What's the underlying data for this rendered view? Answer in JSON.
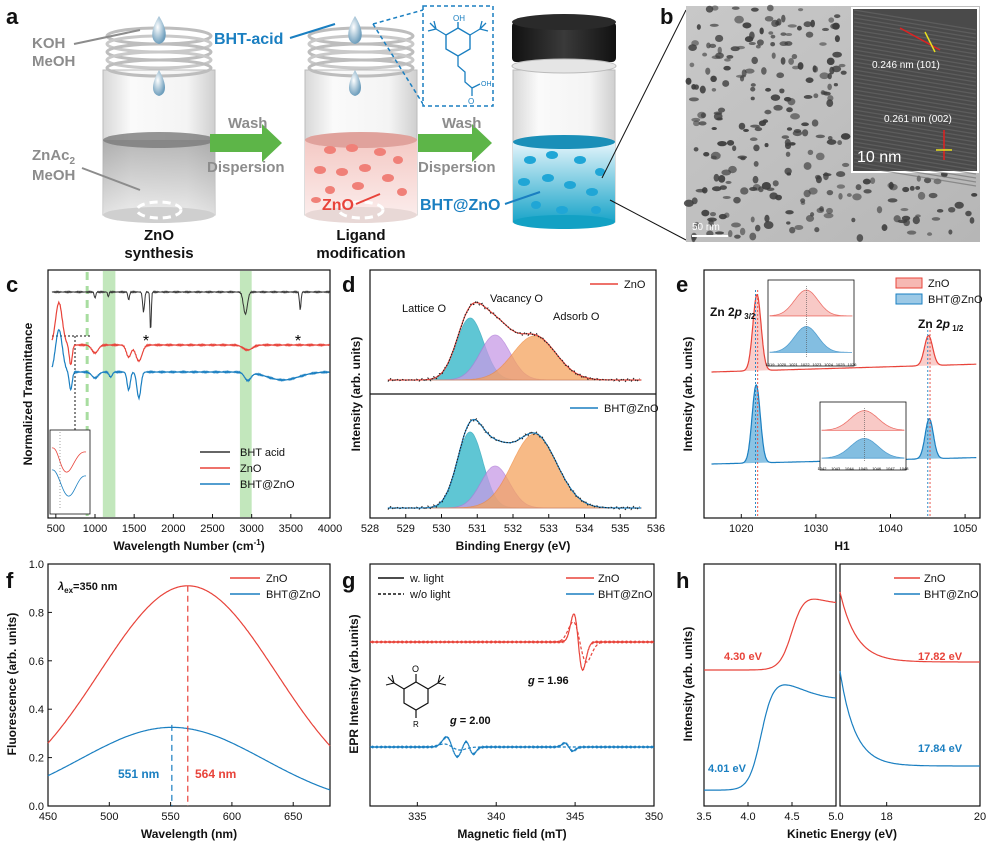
{
  "panel_letters": {
    "a": "a",
    "b": "b",
    "c": "c",
    "d": "d",
    "e": "e",
    "f": "f",
    "g": "g",
    "h": "h"
  },
  "schematic": {
    "koh": "KOH",
    "meoh1": "MeOH",
    "znac": "ZnAc",
    "znac_sub": "2",
    "meoh2": "MeOH",
    "bht_acid": "BHT-acid",
    "molecule_oh": "OH",
    "molecule_o": "O",
    "molecule_oh2": "OH",
    "wash1": "Wash",
    "dispersion1": "Dispersion",
    "wash2": "Wash",
    "dispersion2": "Dispersion",
    "zno": "ZnO",
    "bht_zno": "BHT@ZnO",
    "step1_l1": "ZnO",
    "step1_l2": "synthesis",
    "step2_l1": "Ligand",
    "step2_l2": "modification",
    "colors": {
      "zno": "#e8433a",
      "bht": "#1a7fc1",
      "arrow": "#5db548",
      "grey": "#8c8c8c"
    }
  },
  "tem": {
    "d1": "0.246 nm (101)",
    "d2": "0.261 nm (002)",
    "scale_inset": "10 nm",
    "scale_main": "50 nm"
  },
  "chart_data": [
    {
      "panel": "c",
      "type": "line",
      "xlabel": "Wavelength Number (cm",
      "xlabel_sup": "-1",
      "xlabel_close": ")",
      "ylabel": "Normalized Tranmittance",
      "xlim": [
        400,
        4000
      ],
      "xticks": [
        "500",
        "1000",
        "1500",
        "2000",
        "2500",
        "3000",
        "3500",
        "4000"
      ],
      "highlight_bands_cm1": [
        [
          1100,
          1260
        ],
        [
          2850,
          3000
        ]
      ],
      "dashed_line_cm1": 900,
      "star_marks": [
        "*",
        "*"
      ],
      "series": [
        {
          "name": "BHT acid",
          "color": "#333333"
        },
        {
          "name": "ZnO",
          "color": "#e8433a"
        },
        {
          "name": "BHT@ZnO",
          "color": "#1a7fc1"
        }
      ]
    },
    {
      "panel": "d",
      "type": "line",
      "xlabel": "Binding Energy (eV)",
      "ylabel": "Intensity (arb. units)",
      "xlim": [
        528,
        536
      ],
      "xticks": [
        "528",
        "529",
        "530",
        "531",
        "532",
        "533",
        "534",
        "535",
        "536"
      ],
      "peak_labels": [
        "Lattice O",
        "Vacancy O",
        "Adsorb O"
      ],
      "peak_centers_eV": [
        530.8,
        531.5,
        532.6
      ],
      "series": [
        {
          "name": "ZnO",
          "color": "#e8433a"
        },
        {
          "name": "BHT@ZnO",
          "color": "#1a7fc1"
        }
      ]
    },
    {
      "panel": "e",
      "type": "line",
      "xlabel": "H1",
      "ylabel": "Intensity (arb. units)",
      "xlim": [
        1015,
        1052
      ],
      "xticks": [
        "1020",
        "1030",
        "1040",
        "1050"
      ],
      "peak_labels": {
        "p32_main": "Zn 2",
        "p32_ital": "p",
        "p32_sub": " 3/2",
        "p12_main": "Zn 2",
        "p12_ital": "p",
        "p12_sub": " 1/2"
      },
      "peak_positions_eV": [
        1022.1,
        1045.1
      ],
      "inset_ticks_1": [
        "1019",
        "1020",
        "1021",
        "1022",
        "1023",
        "1024",
        "1025",
        "1026"
      ],
      "inset_ticks_2": [
        "1042",
        "1043",
        "1044",
        "1045",
        "1046",
        "1047",
        "1048"
      ],
      "series": [
        {
          "name": "ZnO",
          "color": "#e8433a"
        },
        {
          "name": "BHT@ZnO",
          "color": "#1a7fc1"
        }
      ]
    },
    {
      "panel": "f",
      "type": "line",
      "xlabel": "Wavelength (nm)",
      "ylabel": "Fluorescence (arb. units)",
      "xlim": [
        450,
        680
      ],
      "ylim": [
        0,
        1.0
      ],
      "xticks": [
        "450",
        "500",
        "550",
        "600",
        "650"
      ],
      "yticks": [
        "0.0",
        "0.2",
        "0.4",
        "0.6",
        "0.8",
        "1.0"
      ],
      "annotation": {
        "lam": "λ",
        "sub": "ex",
        "rest": "=350 nm"
      },
      "peak_labels": {
        "bht": "551 nm",
        "zno": "564 nm"
      },
      "series": [
        {
          "name": "ZnO",
          "color": "#e8433a",
          "peak_x": 564,
          "peak_y": 0.91,
          "sigma": 72,
          "baseline": 0.0
        },
        {
          "name": "BHT@ZnO",
          "color": "#1a7fc1",
          "peak_x": 551,
          "peak_y": 0.335,
          "sigma": 75,
          "baseline": 0.0
        }
      ]
    },
    {
      "panel": "g",
      "type": "line",
      "xlabel": "Magnetic field (mT)",
      "ylabel": "EPR Intensity (arb.units)",
      "xlim": [
        332,
        350
      ],
      "xticks": [
        "335",
        "340",
        "345",
        "350"
      ],
      "legend_style": [
        "w. light",
        "w/o light"
      ],
      "g_labels": {
        "g1_i": "g",
        "g1": " = 1.96",
        "g2_i": "g",
        "g2": " = 2.00"
      },
      "molecule_o": "O",
      "molecule_r": "R",
      "series": [
        {
          "name": "ZnO",
          "color": "#e8433a"
        },
        {
          "name": "BHT@ZnO",
          "color": "#1a7fc1"
        }
      ]
    },
    {
      "panel": "h",
      "type": "line",
      "xlabel": "Kinetic Energy (eV)",
      "ylabel": "Intensity (arb. units)",
      "xticks_left": [
        "3.5",
        "4.0",
        "4.5",
        "5.0"
      ],
      "xticks_right": [
        "18",
        "20"
      ],
      "annotations": {
        "zno_left": "4.30 eV",
        "bht_left": "4.01 eV",
        "zno_right": "17.82 eV",
        "bht_right": "17.84 eV"
      },
      "series": [
        {
          "name": "ZnO",
          "color": "#e8433a"
        },
        {
          "name": "BHT@ZnO",
          "color": "#1a7fc1"
        }
      ]
    }
  ]
}
